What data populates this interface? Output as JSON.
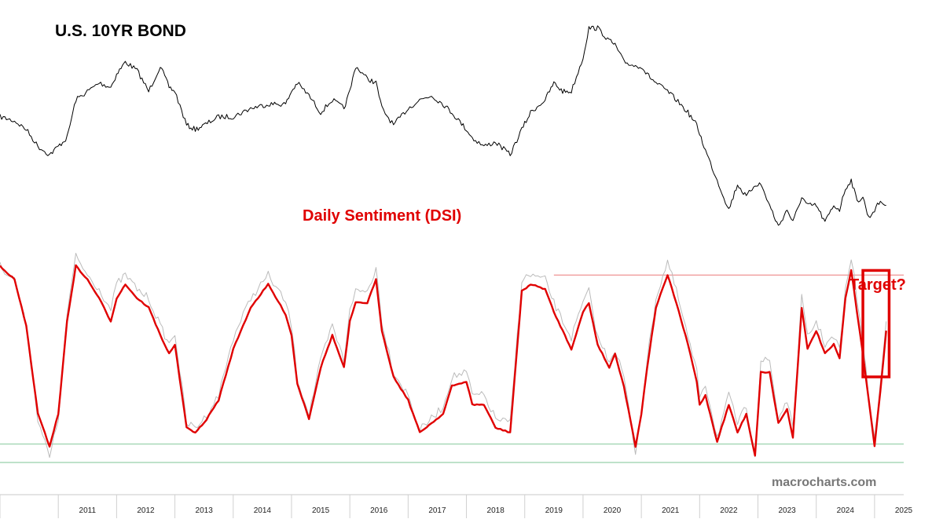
{
  "chart_data": {
    "type": "line",
    "panels": [
      {
        "title": "U.S. 10YR BOND",
        "series": [
          {
            "color": "#000000",
            "x": [
              2010.0,
              2010.25,
              2010.45,
              2010.65,
              2010.85,
              2011.0,
              2011.15,
              2011.3,
              2011.5,
              2011.7,
              2011.9,
              2012.0,
              2012.15,
              2012.35,
              2012.55,
              2012.75,
              2012.9,
              2013.0,
              2013.2,
              2013.35,
              2013.5,
              2013.75,
              2014.0,
              2014.3,
              2014.6,
              2014.9,
              2015.0,
              2015.1,
              2015.3,
              2015.5,
              2015.7,
              2015.9,
              2016.0,
              2016.1,
              2016.3,
              2016.45,
              2016.55,
              2016.75,
              2017.0,
              2017.2,
              2017.4,
              2017.6,
              2017.75,
              2018.0,
              2018.1,
              2018.3,
              2018.5,
              2018.75,
              2018.95,
              2019.1,
              2019.35,
              2019.5,
              2019.65,
              2019.8,
              2020.0,
              2020.1,
              2020.25,
              2020.45,
              2020.55,
              2020.7,
              2020.9,
              2021.0,
              2021.1,
              2021.25,
              2021.45,
              2021.6,
              2021.8,
              2021.95,
              2022.0,
              2022.1,
              2022.3,
              2022.5,
              2022.65,
              2022.8,
              2022.95,
              2023.05,
              2023.2,
              2023.35,
              2023.5,
              2023.6,
              2023.75,
              2023.85,
              2024.0,
              2024.15,
              2024.3,
              2024.4,
              2024.5,
              2024.6,
              2024.7,
              2024.8,
              2024.9,
              2025.0,
              2025.1,
              2025.2
            ],
            "y": [
              100,
              99,
              97,
              93,
              91,
              93,
              95,
              104,
              106,
              108,
              107,
              110,
              113,
              111,
              106,
              112,
              107,
              106,
              98,
              97,
              98,
              100,
              100,
              102,
              103,
              103,
              106,
              108,
              105,
              101,
              104,
              102,
              106,
              112,
              109,
              108,
              102,
              98,
              102,
              104,
              105,
              103,
              101,
              97,
              95,
              93,
              94,
              91,
              97,
              101,
              104,
              108,
              106,
              106,
              114,
              121,
              121,
              118,
              117,
              113,
              112,
              112,
              110,
              108,
              106,
              104,
              101,
              98,
              96,
              92,
              85,
              78,
              84,
              81,
              84,
              84,
              79,
              74,
              78,
              75,
              81,
              79,
              79,
              75,
              79,
              78,
              83,
              85,
              80,
              81,
              76,
              78,
              80,
              79
            ]
          }
        ]
      },
      {
        "title": "Daily Sentiment (DSI)",
        "series": [
          {
            "color": "#bbbbbb",
            "x": [
              2010.0,
              2010.25,
              2010.45,
              2010.65,
              2010.85,
              2011.0,
              2011.15,
              2011.3,
              2011.5,
              2011.7,
              2011.9,
              2012.0,
              2012.15,
              2012.35,
              2012.55,
              2012.75,
              2012.9,
              2013.0,
              2013.2,
              2013.35,
              2013.5,
              2013.75,
              2014.0,
              2014.3,
              2014.6,
              2014.9,
              2015.0,
              2015.1,
              2015.3,
              2015.5,
              2015.7,
              2015.9,
              2016.0,
              2016.1,
              2016.3,
              2016.45,
              2016.55,
              2016.75,
              2017.0,
              2017.2,
              2017.4,
              2017.6,
              2017.75,
              2018.0,
              2018.1,
              2018.3,
              2018.5,
              2018.75,
              2018.95,
              2019.1,
              2019.35,
              2019.5,
              2019.65,
              2019.8,
              2020.0,
              2020.1,
              2020.25,
              2020.45,
              2020.55,
              2020.7,
              2020.9,
              2021.0,
              2021.1,
              2021.25,
              2021.45,
              2021.6,
              2021.8,
              2021.95,
              2022.0,
              2022.1,
              2022.3,
              2022.5,
              2022.65,
              2022.8,
              2022.95,
              2023.05,
              2023.2,
              2023.35,
              2023.5,
              2023.6,
              2023.75,
              2023.85,
              2024.0,
              2024.15,
              2024.3,
              2024.4,
              2024.5,
              2024.6,
              2024.7,
              2024.8,
              2024.9,
              2025.0,
              2025.1,
              2025.2
            ],
            "y": [
              86,
              80,
              60,
              20,
              3,
              20,
              65,
              90,
              82,
              76,
              67,
              78,
              82,
              76,
              72,
              60,
              52,
              57,
              18,
              16,
              20,
              30,
              55,
              72,
              82,
              70,
              60,
              37,
              22,
              45,
              60,
              45,
              68,
              75,
              75,
              85,
              62,
              40,
              30,
              15,
              20,
              25,
              38,
              40,
              30,
              30,
              20,
              18,
              80,
              82,
              80,
              70,
              62,
              55,
              70,
              75,
              55,
              45,
              50,
              38,
              5,
              24,
              45,
              72,
              88,
              75,
              55,
              40,
              30,
              35,
              12,
              30,
              18,
              25,
              5,
              45,
              45,
              20,
              28,
              15,
              72,
              55,
              62,
              52,
              55,
              50,
              75,
              90,
              72,
              52,
              30,
              11,
              35,
              62
            ]
          },
          {
            "color": "#e00000",
            "x": [
              2010.0,
              2010.25,
              2010.45,
              2010.65,
              2010.85,
              2011.0,
              2011.15,
              2011.3,
              2011.5,
              2011.7,
              2011.9,
              2012.0,
              2012.15,
              2012.35,
              2012.55,
              2012.75,
              2012.9,
              2013.0,
              2013.2,
              2013.35,
              2013.5,
              2013.75,
              2014.0,
              2014.3,
              2014.6,
              2014.9,
              2015.0,
              2015.1,
              2015.3,
              2015.5,
              2015.7,
              2015.9,
              2016.0,
              2016.1,
              2016.3,
              2016.45,
              2016.55,
              2016.75,
              2017.0,
              2017.2,
              2017.4,
              2017.6,
              2017.75,
              2018.0,
              2018.1,
              2018.3,
              2018.5,
              2018.75,
              2018.95,
              2019.1,
              2019.35,
              2019.5,
              2019.65,
              2019.8,
              2020.0,
              2020.1,
              2020.25,
              2020.45,
              2020.55,
              2020.7,
              2020.9,
              2021.0,
              2021.1,
              2021.25,
              2021.45,
              2021.6,
              2021.8,
              2021.95,
              2022.0,
              2022.1,
              2022.3,
              2022.5,
              2022.65,
              2022.8,
              2022.95,
              2023.05,
              2023.2,
              2023.35,
              2023.5,
              2023.6,
              2023.75,
              2023.85,
              2024.0,
              2024.15,
              2024.3,
              2024.4,
              2024.5,
              2024.6,
              2024.7,
              2024.8,
              2024.9,
              2025.0,
              2025.1,
              2025.2
            ],
            "y": [
              86,
              80,
              60,
              22,
              8,
              22,
              62,
              86,
              80,
              72,
              62,
              72,
              78,
              72,
              68,
              56,
              48,
              52,
              16,
              14,
              18,
              28,
              50,
              68,
              78,
              65,
              56,
              35,
              20,
              42,
              56,
              42,
              62,
              70,
              70,
              80,
              58,
              38,
              28,
              14,
              18,
              22,
              34,
              36,
              26,
              26,
              16,
              14,
              75,
              78,
              76,
              66,
              58,
              50,
              66,
              70,
              52,
              42,
              48,
              34,
              8,
              22,
              42,
              68,
              82,
              70,
              52,
              36,
              26,
              30,
              10,
              26,
              14,
              22,
              4,
              40,
              40,
              18,
              24,
              12,
              68,
              50,
              58,
              48,
              52,
              46,
              72,
              84,
              66,
              48,
              28,
              8,
              32,
              58
            ]
          }
        ],
        "reference_lines": [
          {
            "y": 82,
            "color": "#f0a0a0",
            "x_from": 2019.5
          },
          {
            "y": 9,
            "color": "#a8d8b8"
          },
          {
            "y": 1,
            "color": "#a8d8b8"
          }
        ],
        "annotation": {
          "label": "Target?",
          "color": "#e00000",
          "box_x": [
            2024.8,
            2025.25
          ],
          "box_y": [
            38,
            84
          ]
        }
      }
    ],
    "x_tick_labels": [
      "2011",
      "2012",
      "2013",
      "2014",
      "2015",
      "2016",
      "2017",
      "2018",
      "2019",
      "2020",
      "2021",
      "2022",
      "2023",
      "2024",
      "2025"
    ],
    "x_range": [
      2010.0,
      2025.5
    ],
    "watermark": "macrocharts.com"
  }
}
